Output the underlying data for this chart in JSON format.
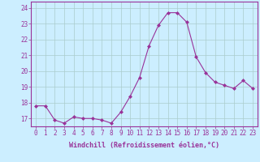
{
  "x": [
    0,
    1,
    2,
    3,
    4,
    5,
    6,
    7,
    8,
    9,
    10,
    11,
    12,
    13,
    14,
    15,
    16,
    17,
    18,
    19,
    20,
    21,
    22,
    23
  ],
  "y": [
    17.8,
    17.8,
    16.9,
    16.7,
    17.1,
    17.0,
    17.0,
    16.9,
    16.7,
    17.4,
    18.4,
    19.6,
    21.6,
    22.9,
    23.7,
    23.7,
    23.1,
    20.9,
    19.9,
    19.3,
    19.1,
    18.9,
    19.4,
    18.9
  ],
  "line_color": "#993399",
  "marker": "D",
  "marker_size": 2.0,
  "background_color": "#cceeff",
  "grid_color": "#aacccc",
  "xlabel": "Windchill (Refroidissement éolien,°C)",
  "ylabel_ticks": [
    17,
    18,
    19,
    20,
    21,
    22,
    23,
    24
  ],
  "xlim": [
    -0.5,
    23.5
  ],
  "ylim": [
    16.5,
    24.4
  ],
  "xtick_labels": [
    "0",
    "1",
    "2",
    "3",
    "4",
    "5",
    "6",
    "7",
    "8",
    "9",
    "10",
    "11",
    "12",
    "13",
    "14",
    "15",
    "16",
    "17",
    "18",
    "19",
    "20",
    "21",
    "22",
    "23"
  ],
  "tick_color": "#993399",
  "label_color": "#993399",
  "axis_color": "#993399",
  "xlabel_fontsize": 6.0,
  "tick_fontsize": 5.5
}
